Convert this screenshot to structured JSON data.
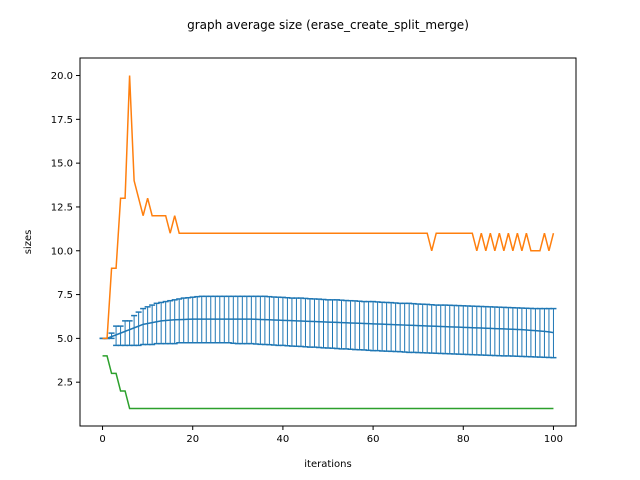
{
  "chart_data": {
    "type": "line",
    "title": "graph average size (erase_create_split_merge)",
    "xlabel": "iterations",
    "ylabel": "sizes",
    "xlim": [
      -5,
      105
    ],
    "ylim": [
      0.0,
      21.0
    ],
    "xticks": [
      0,
      20,
      40,
      60,
      80,
      100
    ],
    "yticks": [
      2.5,
      5.0,
      7.5,
      10.0,
      12.5,
      15.0,
      17.5,
      20.0
    ],
    "ytick_labels": [
      "2.5",
      "5.0",
      "7.5",
      "10.0",
      "12.5",
      "15.0",
      "17.5",
      "20.0"
    ],
    "grid": false,
    "colors": {
      "mean": "#1f77b4",
      "max": "#ff7f0e",
      "min": "#2ca02c"
    },
    "series": [
      {
        "role": "mean",
        "error_bars": true,
        "note_x": "x = 0..100, step 1",
        "mean": [
          5.0,
          5.0,
          5.1,
          5.2,
          5.3,
          5.4,
          5.5,
          5.6,
          5.7,
          5.8,
          5.85,
          5.9,
          5.95,
          6.0,
          6.02,
          6.04,
          6.06,
          6.07,
          6.08,
          6.09,
          6.1,
          6.1,
          6.1,
          6.1,
          6.1,
          6.1,
          6.1,
          6.1,
          6.1,
          6.1,
          6.1,
          6.1,
          6.1,
          6.1,
          6.09,
          6.08,
          6.07,
          6.06,
          6.05,
          6.04,
          6.03,
          6.02,
          6.01,
          6.0,
          5.99,
          5.98,
          5.97,
          5.96,
          5.95,
          5.94,
          5.93,
          5.92,
          5.91,
          5.9,
          5.89,
          5.88,
          5.87,
          5.86,
          5.85,
          5.84,
          5.83,
          5.82,
          5.81,
          5.8,
          5.79,
          5.78,
          5.77,
          5.76,
          5.75,
          5.74,
          5.73,
          5.72,
          5.71,
          5.7,
          5.69,
          5.68,
          5.67,
          5.66,
          5.65,
          5.64,
          5.63,
          5.62,
          5.61,
          5.6,
          5.59,
          5.58,
          5.57,
          5.56,
          5.55,
          5.54,
          5.53,
          5.52,
          5.51,
          5.5,
          5.48,
          5.46,
          5.44,
          5.42,
          5.4,
          5.37,
          5.33
        ],
        "lower": [
          5.0,
          5.0,
          5.0,
          4.6,
          4.6,
          4.6,
          4.6,
          4.6,
          4.6,
          4.65,
          4.65,
          4.65,
          4.7,
          4.7,
          4.7,
          4.7,
          4.7,
          4.75,
          4.75,
          4.75,
          4.75,
          4.75,
          4.75,
          4.75,
          4.75,
          4.75,
          4.75,
          4.75,
          4.75,
          4.72,
          4.7,
          4.7,
          4.7,
          4.7,
          4.68,
          4.66,
          4.65,
          4.64,
          4.62,
          4.6,
          4.6,
          4.58,
          4.56,
          4.55,
          4.54,
          4.52,
          4.5,
          4.5,
          4.48,
          4.46,
          4.45,
          4.44,
          4.42,
          4.4,
          4.4,
          4.38,
          4.36,
          4.35,
          4.34,
          4.32,
          4.3,
          4.3,
          4.28,
          4.27,
          4.26,
          4.25,
          4.24,
          4.22,
          4.2,
          4.2,
          4.19,
          4.18,
          4.17,
          4.16,
          4.15,
          4.14,
          4.13,
          4.12,
          4.11,
          4.1,
          4.09,
          4.08,
          4.07,
          4.06,
          4.05,
          4.04,
          4.03,
          4.02,
          4.01,
          4.0,
          4.0,
          3.99,
          3.98,
          3.97,
          3.96,
          3.95,
          3.94,
          3.93,
          3.92,
          3.91,
          3.9
        ],
        "upper": [
          5.0,
          5.0,
          5.3,
          5.7,
          5.7,
          6.0,
          6.0,
          6.3,
          6.5,
          6.7,
          6.8,
          6.9,
          7.0,
          7.05,
          7.1,
          7.15,
          7.2,
          7.25,
          7.3,
          7.32,
          7.35,
          7.38,
          7.4,
          7.4,
          7.4,
          7.4,
          7.4,
          7.4,
          7.4,
          7.4,
          7.4,
          7.4,
          7.4,
          7.4,
          7.4,
          7.4,
          7.4,
          7.38,
          7.36,
          7.35,
          7.34,
          7.32,
          7.3,
          7.3,
          7.3,
          7.28,
          7.26,
          7.25,
          7.24,
          7.22,
          7.2,
          7.2,
          7.2,
          7.18,
          7.16,
          7.15,
          7.14,
          7.12,
          7.1,
          7.1,
          7.1,
          7.08,
          7.06,
          7.05,
          7.04,
          7.02,
          7.0,
          7.0,
          7.0,
          6.98,
          6.96,
          6.95,
          6.94,
          6.92,
          6.9,
          6.9,
          6.9,
          6.89,
          6.88,
          6.87,
          6.86,
          6.85,
          6.84,
          6.83,
          6.82,
          6.81,
          6.8,
          6.79,
          6.78,
          6.77,
          6.76,
          6.75,
          6.74,
          6.73,
          6.72,
          6.71,
          6.7,
          6.7,
          6.7,
          6.7,
          6.7
        ]
      },
      {
        "role": "max",
        "x": [
          0,
          1,
          2,
          3,
          4,
          5,
          6,
          7,
          8,
          9,
          10,
          11,
          12,
          13,
          14,
          15,
          16,
          17,
          18,
          19,
          20,
          72,
          73,
          74,
          82,
          83,
          84,
          85,
          86,
          87,
          88,
          89,
          90,
          91,
          92,
          93,
          94,
          95,
          96,
          97,
          98,
          99,
          100
        ],
        "y": [
          5.0,
          5.0,
          9.0,
          9.0,
          13.0,
          13.0,
          20.0,
          14.0,
          13.0,
          12.0,
          13.0,
          12.0,
          12.0,
          12.0,
          12.0,
          11.0,
          12.0,
          11.0,
          11.0,
          11.0,
          11.0,
          11.0,
          10.0,
          11.0,
          11.0,
          10.0,
          11.0,
          10.0,
          11.0,
          10.0,
          11.0,
          10.0,
          11.0,
          10.0,
          11.0,
          10.0,
          11.0,
          10.0,
          10.0,
          10.0,
          11.0,
          10.0,
          11.0
        ]
      },
      {
        "role": "min",
        "x": [
          0,
          1,
          2,
          3,
          4,
          5,
          6,
          7,
          100
        ],
        "y": [
          4.0,
          4.0,
          3.0,
          3.0,
          2.0,
          2.0,
          1.0,
          1.0,
          1.0
        ]
      }
    ]
  }
}
